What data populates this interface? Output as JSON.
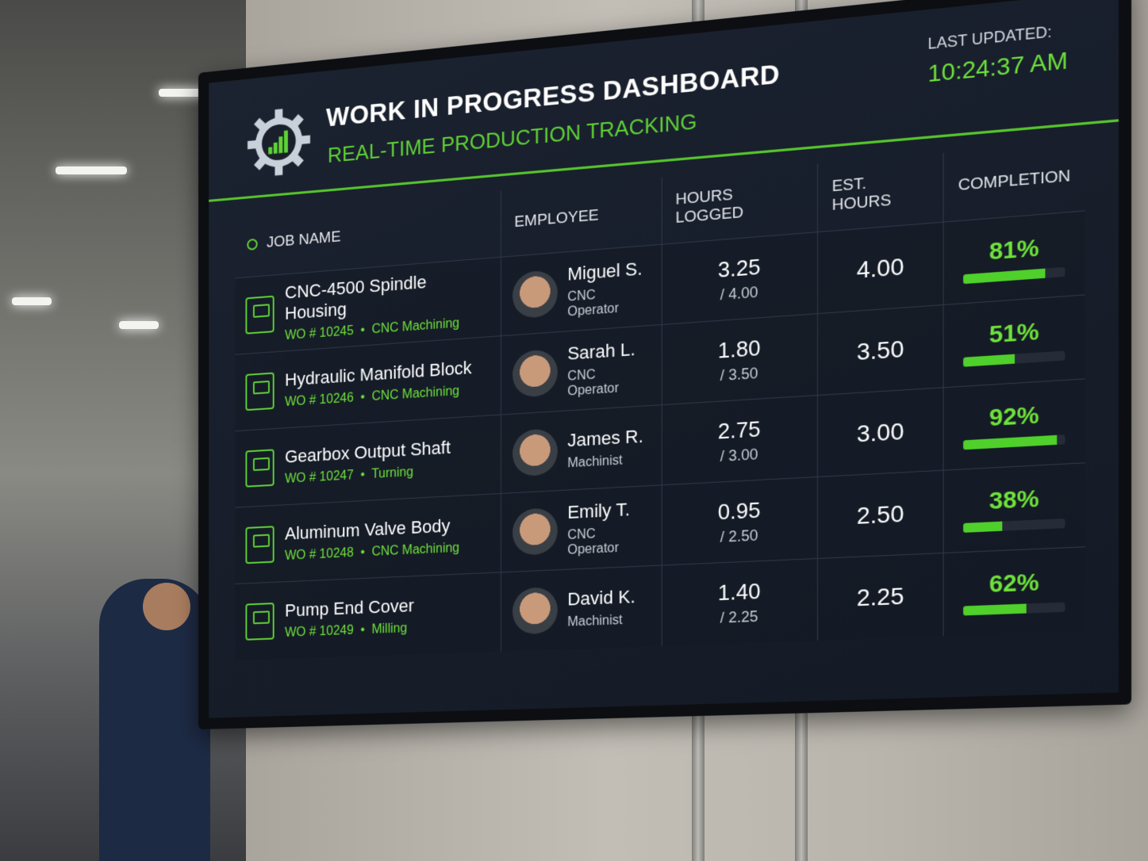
{
  "header": {
    "title": "WORK IN PROGRESS DASHBOARD",
    "subtitle": "REAL-TIME PRODUCTION TRACKING",
    "last_updated_label": "LAST UPDATED:",
    "last_updated_time": "10:24:37 AM",
    "logo_icon": "gear-chart-icon"
  },
  "colors": {
    "accent": "#5fd135",
    "background": "#161c27",
    "text": "#ffffff"
  },
  "table": {
    "columns": [
      "JOB NAME",
      "EMPLOYEE",
      "HOURS LOGGED",
      "EST. HOURS",
      "COMPLETION"
    ],
    "rows": [
      {
        "job": "CNC-4500 Spindle Housing",
        "wo": "WO # 10245",
        "process": "CNC Machining",
        "employee": "Miguel S.",
        "role": "CNC Operator",
        "hours": "3.25",
        "hours_of": "/ 4.00",
        "est": "4.00",
        "completion": "81%",
        "percent": 81
      },
      {
        "job": "Hydraulic Manifold Block",
        "wo": "WO # 10246",
        "process": "CNC Machining",
        "employee": "Sarah L.",
        "role": "CNC Operator",
        "hours": "1.80",
        "hours_of": "/ 3.50",
        "est": "3.50",
        "completion": "51%",
        "percent": 51
      },
      {
        "job": "Gearbox Output Shaft",
        "wo": "WO # 10247",
        "process": "Turning",
        "employee": "James R.",
        "role": "Machinist",
        "hours": "2.75",
        "hours_of": "/ 3.00",
        "est": "3.00",
        "completion": "92%",
        "percent": 92
      },
      {
        "job": "Aluminum Valve Body",
        "wo": "WO # 10248",
        "process": "CNC Machining",
        "employee": "Emily T.",
        "role": "CNC Operator",
        "hours": "0.95",
        "hours_of": "/ 2.50",
        "est": "2.50",
        "completion": "38%",
        "percent": 38
      },
      {
        "job": "Pump End Cover",
        "wo": "WO # 10249",
        "process": "Milling",
        "employee": "David K.",
        "role": "Machinist",
        "hours": "1.40",
        "hours_of": "/ 2.25",
        "est": "2.25",
        "completion": "62%",
        "percent": 62
      }
    ]
  }
}
